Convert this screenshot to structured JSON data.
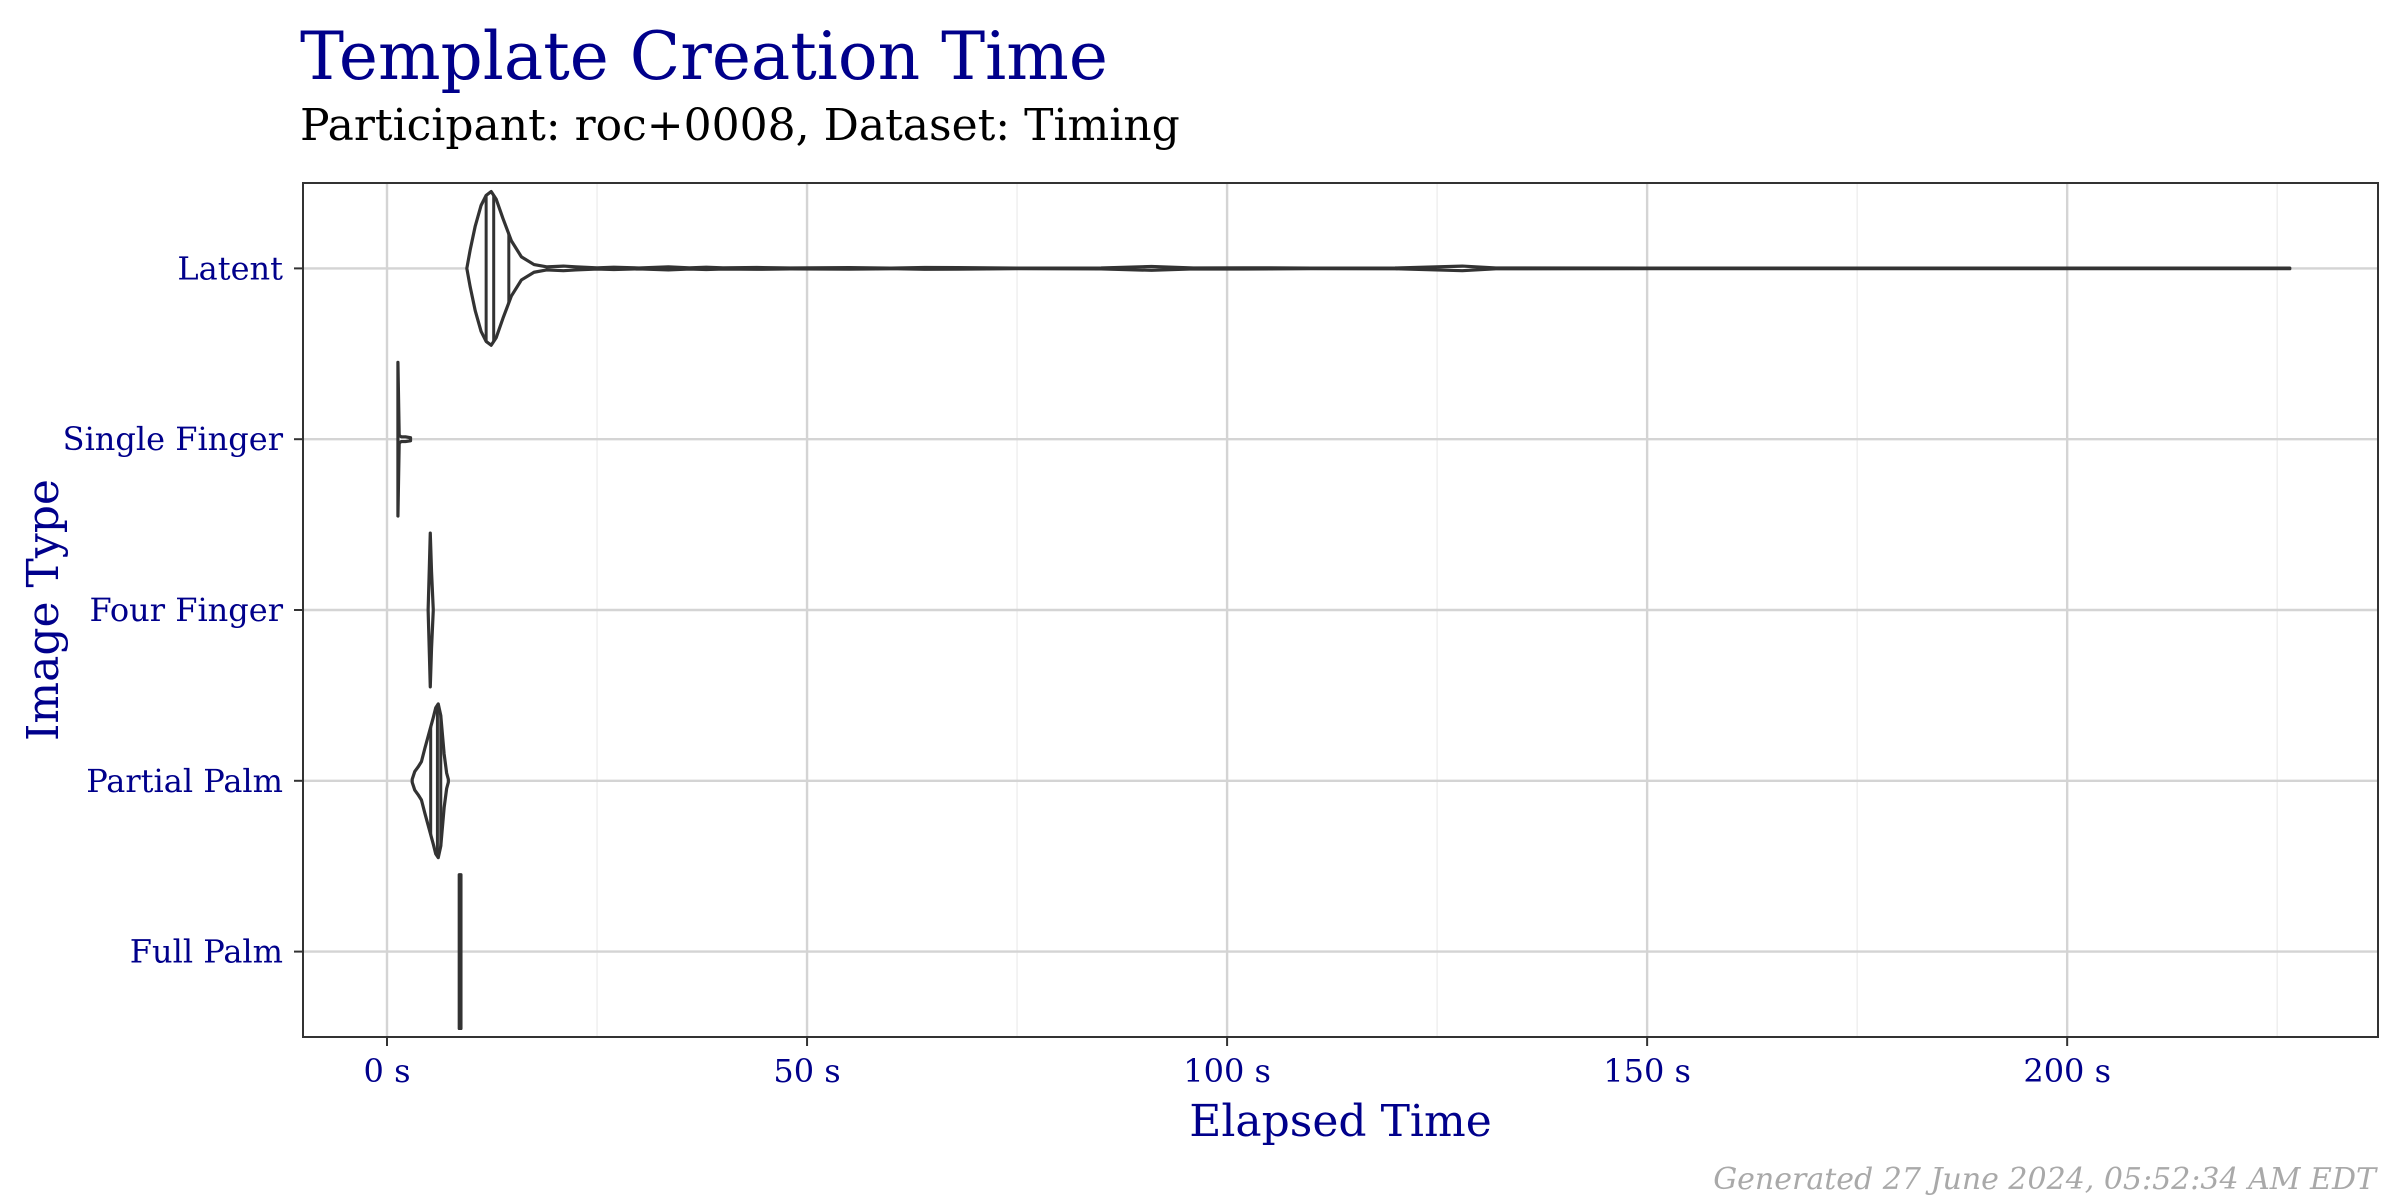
{
  "title": "Template Creation Time",
  "subtitle": "Participant: roc+0008, Dataset: Timing",
  "caption": "Generated 27 June 2024, 05:52:34 AM EDT",
  "chart_data": {
    "type": "violin",
    "orientation": "horizontal",
    "xlabel": "Elapsed Time",
    "ylabel": "Image Type",
    "xlim": [
      -10,
      237
    ],
    "x_ticks": [
      {
        "value": 0,
        "label": "0 s"
      },
      {
        "value": 50,
        "label": "50 s"
      },
      {
        "value": 100,
        "label": "100 s"
      },
      {
        "value": 150,
        "label": "150 s"
      },
      {
        "value": 200,
        "label": "200 s"
      }
    ],
    "x_minor_ticks": [
      25,
      75,
      125,
      175,
      225
    ],
    "categories": [
      "Latent",
      "Single Finger",
      "Four Finger",
      "Partial Palm",
      "Full Palm"
    ],
    "grid": true,
    "violins": [
      {
        "category": "Latent",
        "min": 9.5,
        "max": 226.5,
        "quantiles": [
          11.8,
          12.7,
          14.5
        ],
        "profile": [
          [
            9.5,
            0.0
          ],
          [
            9.9,
            0.24
          ],
          [
            10.5,
            0.55
          ],
          [
            11.2,
            0.82
          ],
          [
            11.8,
            0.95
          ],
          [
            12.4,
            1.0
          ],
          [
            13.0,
            0.9
          ],
          [
            13.8,
            0.65
          ],
          [
            14.8,
            0.36
          ],
          [
            16.0,
            0.15
          ],
          [
            17.5,
            0.05
          ],
          [
            19.0,
            0.02
          ],
          [
            21.0,
            0.03
          ],
          [
            22.5,
            0.02
          ],
          [
            25,
            0.008
          ],
          [
            27,
            0.015
          ],
          [
            30,
            0.006
          ],
          [
            33.5,
            0.02
          ],
          [
            36,
            0.008
          ],
          [
            38,
            0.015
          ],
          [
            40,
            0.008
          ],
          [
            44,
            0.012
          ],
          [
            48,
            0.006
          ],
          [
            55,
            0.01
          ],
          [
            60,
            0.004
          ],
          [
            64,
            0.012
          ],
          [
            68,
            0.01
          ],
          [
            75,
            0.004
          ],
          [
            85,
            0.006
          ],
          [
            91,
            0.025
          ],
          [
            96,
            0.006
          ],
          [
            102,
            0.008
          ],
          [
            110,
            0.004
          ],
          [
            120,
            0.005
          ],
          [
            128,
            0.03
          ],
          [
            132,
            0.005
          ],
          [
            150,
            0.004
          ],
          [
            180,
            0.004
          ],
          [
            210,
            0.004
          ],
          [
            226.5,
            0.004
          ]
        ]
      },
      {
        "category": "Single Finger",
        "min": 1.3,
        "max": 2.8,
        "quantiles": [],
        "profile": [
          [
            1.3,
            1.0
          ],
          [
            1.45,
            0.05
          ],
          [
            1.7,
            0.03
          ],
          [
            2.2,
            0.03
          ],
          [
            2.8,
            0.02
          ]
        ]
      },
      {
        "category": "Four Finger",
        "min": 4.9,
        "max": 5.5,
        "quantiles": [],
        "profile": [
          [
            4.9,
            0.02
          ],
          [
            5.05,
            0.6
          ],
          [
            5.15,
            1.0
          ],
          [
            5.3,
            0.5
          ],
          [
            5.5,
            0.02
          ]
        ]
      },
      {
        "category": "Partial Palm",
        "min": 3.0,
        "max": 7.3,
        "quantiles": [
          5.2,
          6.0,
          6.4
        ],
        "profile": [
          [
            3.0,
            0.02
          ],
          [
            3.3,
            0.12
          ],
          [
            3.7,
            0.18
          ],
          [
            4.1,
            0.25
          ],
          [
            4.5,
            0.42
          ],
          [
            5.0,
            0.62
          ],
          [
            5.5,
            0.82
          ],
          [
            5.8,
            0.95
          ],
          [
            6.1,
            1.0
          ],
          [
            6.4,
            0.85
          ],
          [
            6.8,
            0.35
          ],
          [
            7.1,
            0.1
          ],
          [
            7.3,
            0.02
          ]
        ]
      },
      {
        "category": "Full Palm",
        "min": 8.6,
        "max": 8.8,
        "quantiles": [],
        "profile": [
          [
            8.6,
            1.0
          ],
          [
            8.8,
            1.0
          ]
        ]
      }
    ]
  }
}
